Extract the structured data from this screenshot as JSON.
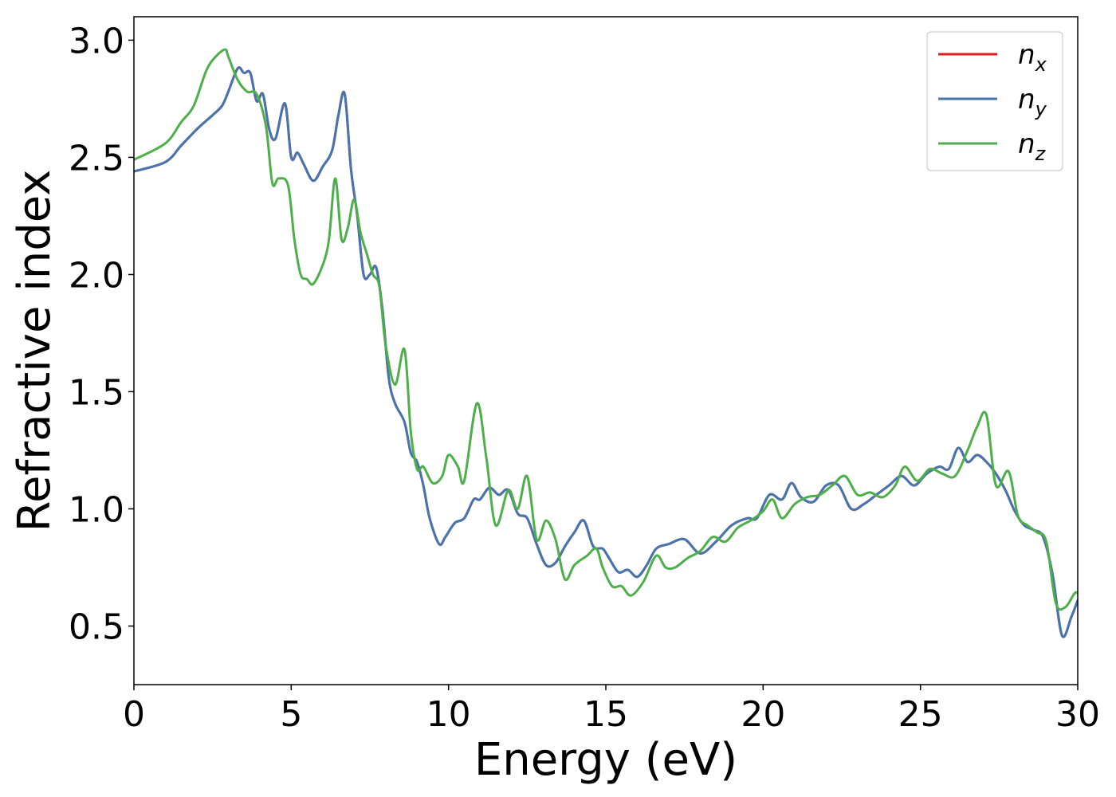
{
  "chart_data": {
    "type": "line",
    "xlabel": "Energy (eV)",
    "ylabel": "Refractive index",
    "xlim": [
      0,
      30
    ],
    "ylim": [
      0.25,
      3.1
    ],
    "xticks": [
      0,
      5,
      10,
      15,
      20,
      25,
      30
    ],
    "xtick_labels": [
      "0",
      "5",
      "10",
      "15",
      "20",
      "25",
      "30"
    ],
    "yticks": [
      0.5,
      1.0,
      1.5,
      2.0,
      2.5,
      3.0
    ],
    "ytick_labels": [
      "0.5",
      "1.0",
      "1.5",
      "2.0",
      "2.5",
      "3.0"
    ],
    "grid": false,
    "legend_position": "top-right",
    "series": [
      {
        "name": "n_x",
        "label_main": "n",
        "label_sub": "x",
        "color": "#e41a1c",
        "x": [
          0,
          1,
          1.5,
          2,
          2.5,
          2.8,
          3,
          3.3,
          3.5,
          3.7,
          3.9,
          4.1,
          4.3,
          4.5,
          4.8,
          5.0,
          5.2,
          5.4,
          5.7,
          6.0,
          6.3,
          6.5,
          6.7,
          6.9,
          7.1,
          7.3,
          7.5,
          7.7,
          7.9,
          8.1,
          8.3,
          8.6,
          8.8,
          9.0,
          9.2,
          9.4,
          9.7,
          9.9,
          10.2,
          10.5,
          10.8,
          11.0,
          11.3,
          11.6,
          11.9,
          12.2,
          12.5,
          12.8,
          13.1,
          13.4,
          13.7,
          14.0,
          14.3,
          14.6,
          14.9,
          15.1,
          15.4,
          15.7,
          16.0,
          16.3,
          16.6,
          17.0,
          17.5,
          18.0,
          18.5,
          19.0,
          19.5,
          19.8,
          20.2,
          20.6,
          20.9,
          21.2,
          21.6,
          22.0,
          22.4,
          22.8,
          23.2,
          23.6,
          24.0,
          24.4,
          24.8,
          25.2,
          25.6,
          25.9,
          26.2,
          26.5,
          26.8,
          27.1,
          27.4,
          27.7,
          28.0,
          28.3,
          28.6,
          28.9,
          29.2,
          29.5,
          29.8,
          30
        ],
        "y": [
          2.44,
          2.48,
          2.55,
          2.62,
          2.68,
          2.72,
          2.78,
          2.88,
          2.86,
          2.86,
          2.74,
          2.77,
          2.62,
          2.58,
          2.73,
          2.5,
          2.52,
          2.47,
          2.4,
          2.46,
          2.53,
          2.68,
          2.77,
          2.45,
          2.25,
          2.0,
          2.0,
          2.03,
          1.85,
          1.56,
          1.45,
          1.37,
          1.24,
          1.2,
          1.1,
          0.96,
          0.85,
          0.88,
          0.94,
          0.96,
          1.04,
          1.04,
          1.09,
          1.06,
          1.08,
          0.98,
          0.96,
          0.85,
          0.76,
          0.77,
          0.84,
          0.9,
          0.95,
          0.84,
          0.83,
          0.79,
          0.73,
          0.74,
          0.71,
          0.76,
          0.83,
          0.85,
          0.87,
          0.81,
          0.86,
          0.93,
          0.96,
          0.96,
          1.06,
          1.04,
          1.11,
          1.05,
          1.03,
          1.1,
          1.1,
          1.0,
          1.02,
          1.06,
          1.1,
          1.14,
          1.1,
          1.15,
          1.18,
          1.17,
          1.26,
          1.2,
          1.23,
          1.2,
          1.15,
          1.08,
          0.99,
          0.93,
          0.91,
          0.88,
          0.72,
          0.46,
          0.54,
          0.61
        ]
      },
      {
        "name": "n_y",
        "label_main": "n",
        "label_sub": "y",
        "color": "#4575b0",
        "x": [
          0,
          1,
          1.5,
          2,
          2.5,
          2.8,
          3,
          3.3,
          3.5,
          3.7,
          3.9,
          4.1,
          4.3,
          4.5,
          4.8,
          5.0,
          5.2,
          5.4,
          5.7,
          6.0,
          6.3,
          6.5,
          6.7,
          6.9,
          7.1,
          7.3,
          7.5,
          7.7,
          7.9,
          8.1,
          8.3,
          8.6,
          8.8,
          9.0,
          9.2,
          9.4,
          9.7,
          9.9,
          10.2,
          10.5,
          10.8,
          11.0,
          11.3,
          11.6,
          11.9,
          12.2,
          12.5,
          12.8,
          13.1,
          13.4,
          13.7,
          14.0,
          14.3,
          14.6,
          14.9,
          15.1,
          15.4,
          15.7,
          16.0,
          16.3,
          16.6,
          17.0,
          17.5,
          18.0,
          18.5,
          19.0,
          19.5,
          19.8,
          20.2,
          20.6,
          20.9,
          21.2,
          21.6,
          22.0,
          22.4,
          22.8,
          23.2,
          23.6,
          24.0,
          24.4,
          24.8,
          25.2,
          25.6,
          25.9,
          26.2,
          26.5,
          26.8,
          27.1,
          27.4,
          27.7,
          28.0,
          28.3,
          28.6,
          28.9,
          29.2,
          29.5,
          29.8,
          30
        ],
        "y": [
          2.44,
          2.48,
          2.55,
          2.62,
          2.68,
          2.72,
          2.78,
          2.88,
          2.86,
          2.86,
          2.74,
          2.77,
          2.62,
          2.58,
          2.73,
          2.5,
          2.52,
          2.47,
          2.4,
          2.46,
          2.53,
          2.68,
          2.77,
          2.45,
          2.25,
          2.0,
          2.0,
          2.03,
          1.85,
          1.56,
          1.45,
          1.37,
          1.24,
          1.2,
          1.1,
          0.96,
          0.85,
          0.88,
          0.94,
          0.96,
          1.04,
          1.04,
          1.09,
          1.06,
          1.08,
          0.98,
          0.96,
          0.85,
          0.76,
          0.77,
          0.84,
          0.9,
          0.95,
          0.84,
          0.83,
          0.79,
          0.73,
          0.74,
          0.71,
          0.76,
          0.83,
          0.85,
          0.87,
          0.81,
          0.86,
          0.93,
          0.96,
          0.96,
          1.06,
          1.04,
          1.11,
          1.05,
          1.03,
          1.1,
          1.1,
          1.0,
          1.02,
          1.06,
          1.1,
          1.14,
          1.1,
          1.15,
          1.18,
          1.17,
          1.26,
          1.2,
          1.23,
          1.2,
          1.15,
          1.08,
          0.99,
          0.93,
          0.91,
          0.88,
          0.72,
          0.46,
          0.54,
          0.61
        ]
      },
      {
        "name": "n_z",
        "label_main": "n",
        "label_sub": "z",
        "color": "#4daf4a",
        "x": [
          0,
          1,
          1.5,
          1.9,
          2.3,
          2.6,
          2.9,
          3.0,
          3.3,
          3.6,
          3.9,
          4.2,
          4.4,
          4.6,
          4.9,
          5.1,
          5.3,
          5.5,
          5.7,
          6.0,
          6.2,
          6.4,
          6.6,
          6.8,
          7.0,
          7.2,
          7.4,
          7.6,
          7.8,
          8.0,
          8.3,
          8.6,
          8.8,
          9.0,
          9.2,
          9.5,
          9.8,
          10.0,
          10.3,
          10.5,
          10.9,
          11.2,
          11.5,
          11.9,
          12.2,
          12.5,
          12.8,
          13.1,
          13.4,
          13.7,
          14.0,
          14.4,
          14.7,
          14.9,
          15.2,
          15.5,
          15.8,
          16.2,
          16.6,
          16.9,
          17.2,
          17.6,
          18.0,
          18.4,
          18.8,
          19.2,
          19.6,
          20.0,
          20.3,
          20.6,
          21.0,
          21.4,
          21.8,
          22.2,
          22.6,
          23.0,
          23.4,
          23.8,
          24.2,
          24.5,
          24.9,
          25.3,
          25.7,
          26.1,
          26.5,
          26.8,
          27.1,
          27.4,
          27.8,
          28.1,
          28.4,
          28.7,
          29.0,
          29.3,
          29.6,
          29.9,
          30
        ],
        "y": [
          2.49,
          2.56,
          2.65,
          2.72,
          2.87,
          2.93,
          2.96,
          2.93,
          2.83,
          2.78,
          2.77,
          2.63,
          2.39,
          2.41,
          2.38,
          2.15,
          2.0,
          1.98,
          1.96,
          2.04,
          2.15,
          2.41,
          2.15,
          2.2,
          2.32,
          2.18,
          2.09,
          2.0,
          1.95,
          1.7,
          1.53,
          1.68,
          1.33,
          1.17,
          1.18,
          1.11,
          1.14,
          1.23,
          1.18,
          1.12,
          1.45,
          1.22,
          0.93,
          1.08,
          1.0,
          1.14,
          0.87,
          0.95,
          0.87,
          0.7,
          0.76,
          0.8,
          0.83,
          0.75,
          0.67,
          0.67,
          0.63,
          0.69,
          0.8,
          0.75,
          0.75,
          0.79,
          0.82,
          0.88,
          0.86,
          0.92,
          0.95,
          0.99,
          1.04,
          0.96,
          1.02,
          1.05,
          1.06,
          1.1,
          1.14,
          1.06,
          1.07,
          1.05,
          1.1,
          1.18,
          1.12,
          1.17,
          1.15,
          1.14,
          1.25,
          1.35,
          1.4,
          1.1,
          1.16,
          0.97,
          0.93,
          0.9,
          0.86,
          0.6,
          0.58,
          0.64,
          0.64
        ]
      }
    ]
  }
}
